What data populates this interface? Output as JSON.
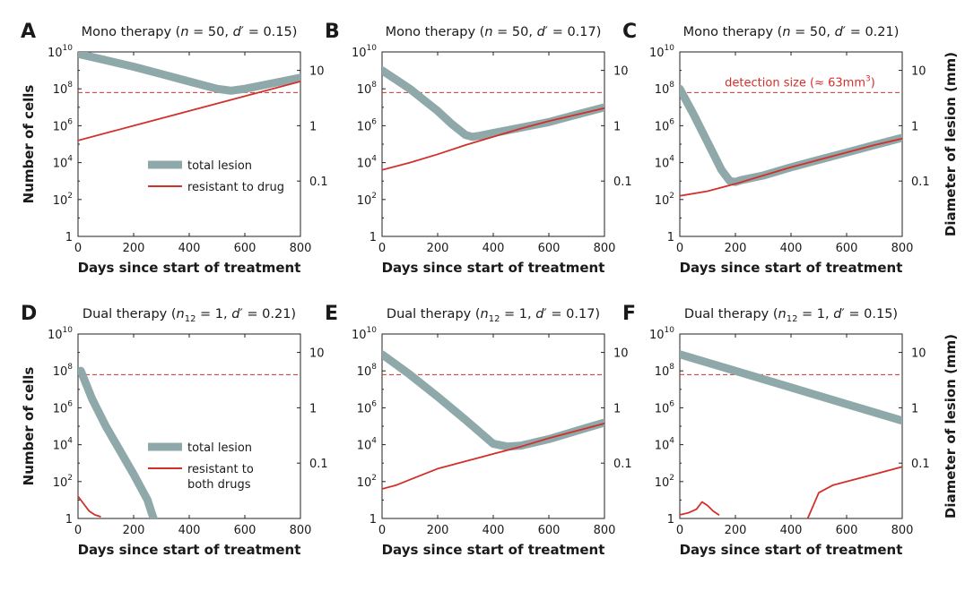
{
  "figure": {
    "xlabel": "Days since start of treatment",
    "ylabel_left": "Number of cells",
    "ylabel_right": "Diameter of lesion (mm)",
    "left_tick_labels": [
      "1",
      "10^2",
      "10^4",
      "10^6",
      "10^8",
      "10^10"
    ],
    "right_tick_labels": [
      "0.1",
      "1",
      "10"
    ],
    "x_tick_labels": [
      "0",
      "200",
      "400",
      "600",
      "800"
    ],
    "detection_label": "detection size (≈ 63mm^3)",
    "colors": {
      "total": "#8fa9aa",
      "resistant": "#d2302a",
      "detection": "#d2302a",
      "text": "#1a1a1a"
    }
  },
  "chart_data": [
    {
      "panel": "A",
      "type": "line",
      "title": {
        "therapy": "Mono therapy",
        "param": "n = 50",
        "d": "d′ = 0.15"
      },
      "xlim": [
        0,
        800
      ],
      "ylim_log10": [
        0,
        10
      ],
      "detection_log10": 7.8,
      "yscale": "log",
      "legend": {
        "total": "total lesion",
        "resistant": [
          "resistant to drug"
        ]
      },
      "series": [
        {
          "name": "total lesion",
          "x": [
            0,
            100,
            200,
            300,
            400,
            500,
            550,
            600,
            700,
            800
          ],
          "log10_y": [
            9.9,
            9.55,
            9.2,
            8.8,
            8.4,
            8.0,
            7.9,
            8.0,
            8.3,
            8.6
          ]
        },
        {
          "name": "resistant to drug",
          "x": [
            0,
            200,
            400,
            600,
            800
          ],
          "log10_y": [
            5.2,
            6.0,
            6.8,
            7.6,
            8.4
          ]
        }
      ]
    },
    {
      "panel": "B",
      "type": "line",
      "title": {
        "therapy": "Mono therapy",
        "param": "n = 50",
        "d": "d′ = 0.17"
      },
      "xlim": [
        0,
        800
      ],
      "ylim_log10": [
        0,
        10
      ],
      "detection_log10": 7.8,
      "yscale": "log",
      "series": [
        {
          "name": "total lesion",
          "x": [
            0,
            50,
            100,
            150,
            200,
            250,
            300,
            325,
            350,
            400,
            500,
            600,
            700,
            800
          ],
          "log10_y": [
            9.0,
            8.5,
            8.0,
            7.4,
            6.8,
            6.1,
            5.5,
            5.4,
            5.45,
            5.6,
            5.9,
            6.2,
            6.6,
            7.0
          ]
        },
        {
          "name": "resistant to drug",
          "x": [
            0,
            100,
            200,
            300,
            400,
            500,
            600,
            700,
            800
          ],
          "log10_y": [
            3.6,
            4.0,
            4.45,
            4.95,
            5.4,
            5.85,
            6.25,
            6.6,
            6.95
          ]
        }
      ]
    },
    {
      "panel": "C",
      "type": "line",
      "title": {
        "therapy": "Mono therapy",
        "param": "n = 50",
        "d": "d′ = 0.21"
      },
      "xlim": [
        0,
        800
      ],
      "ylim_log10": [
        0,
        10
      ],
      "detection_log10": 7.8,
      "yscale": "log",
      "show_detection_label": true,
      "series": [
        {
          "name": "total lesion",
          "x": [
            0,
            50,
            100,
            150,
            180,
            200,
            220,
            300,
            400,
            500,
            600,
            700,
            800
          ],
          "log10_y": [
            8.0,
            6.6,
            5.1,
            3.6,
            3.0,
            2.95,
            3.05,
            3.3,
            3.75,
            4.15,
            4.55,
            4.95,
            5.35
          ]
        },
        {
          "name": "resistant to drug",
          "x": [
            0,
            100,
            200,
            300,
            400,
            500,
            600,
            700,
            800
          ],
          "log10_y": [
            2.2,
            2.45,
            2.85,
            3.3,
            3.75,
            4.15,
            4.55,
            4.95,
            5.3
          ]
        }
      ]
    },
    {
      "panel": "D",
      "type": "line",
      "title": {
        "therapy": "Dual therapy",
        "param": "n12 = 1",
        "d": "d′ = 0.21"
      },
      "xlim": [
        0,
        800
      ],
      "ylim_log10": [
        0,
        10
      ],
      "detection_log10": 7.8,
      "yscale": "log",
      "legend": {
        "total": "total lesion",
        "resistant": [
          "resistant to",
          "both drugs"
        ]
      },
      "series": [
        {
          "name": "total lesion",
          "x": [
            10,
            50,
            100,
            150,
            200,
            250,
            265,
            272
          ],
          "log10_y": [
            8.0,
            6.5,
            5.0,
            3.7,
            2.4,
            1.0,
            0.3,
            0.0
          ]
        },
        {
          "name": "resistant to both drugs",
          "x": [
            0,
            20,
            40,
            60,
            80
          ],
          "log10_y": [
            1.2,
            0.8,
            0.4,
            0.2,
            0.1
          ]
        }
      ]
    },
    {
      "panel": "E",
      "type": "line",
      "title": {
        "therapy": "Dual therapy",
        "param": "n12 = 1",
        "d": "d′ = 0.17"
      },
      "xlim": [
        0,
        800
      ],
      "ylim_log10": [
        0,
        10
      ],
      "detection_log10": 7.8,
      "yscale": "log",
      "series": [
        {
          "name": "total lesion",
          "x": [
            0,
            100,
            200,
            300,
            400,
            450,
            500,
            600,
            700,
            800
          ],
          "log10_y": [
            8.9,
            7.8,
            6.6,
            5.35,
            4.05,
            3.9,
            3.95,
            4.3,
            4.75,
            5.2
          ]
        },
        {
          "name": "resistant to both drugs",
          "x": [
            0,
            50,
            100,
            200,
            300,
            400,
            500,
            600,
            700,
            800
          ],
          "log10_y": [
            1.6,
            1.8,
            2.1,
            2.7,
            3.1,
            3.5,
            3.9,
            4.35,
            4.75,
            5.15
          ]
        }
      ]
    },
    {
      "panel": "F",
      "type": "line",
      "title": {
        "therapy": "Dual therapy",
        "param": "n12 = 1",
        "d": "d′ = 0.15"
      },
      "xlim": [
        0,
        800
      ],
      "ylim_log10": [
        0,
        10
      ],
      "detection_log10": 7.8,
      "yscale": "log",
      "series": [
        {
          "name": "total lesion",
          "x": [
            0,
            200,
            400,
            600,
            800
          ],
          "log10_y": [
            8.9,
            8.0,
            7.1,
            6.2,
            5.3
          ]
        },
        {
          "name": "resistant to both drugs",
          "x": [
            0,
            30,
            60,
            80,
            100,
            120,
            140
          ],
          "log10_y": [
            0.2,
            0.3,
            0.5,
            0.9,
            0.7,
            0.4,
            0.2
          ]
        },
        {
          "name": "resistant to both drugs (late)",
          "x": [
            460,
            500,
            550,
            600,
            700,
            800
          ],
          "log10_y": [
            0.0,
            1.4,
            1.8,
            2.0,
            2.4,
            2.8
          ]
        }
      ]
    }
  ]
}
